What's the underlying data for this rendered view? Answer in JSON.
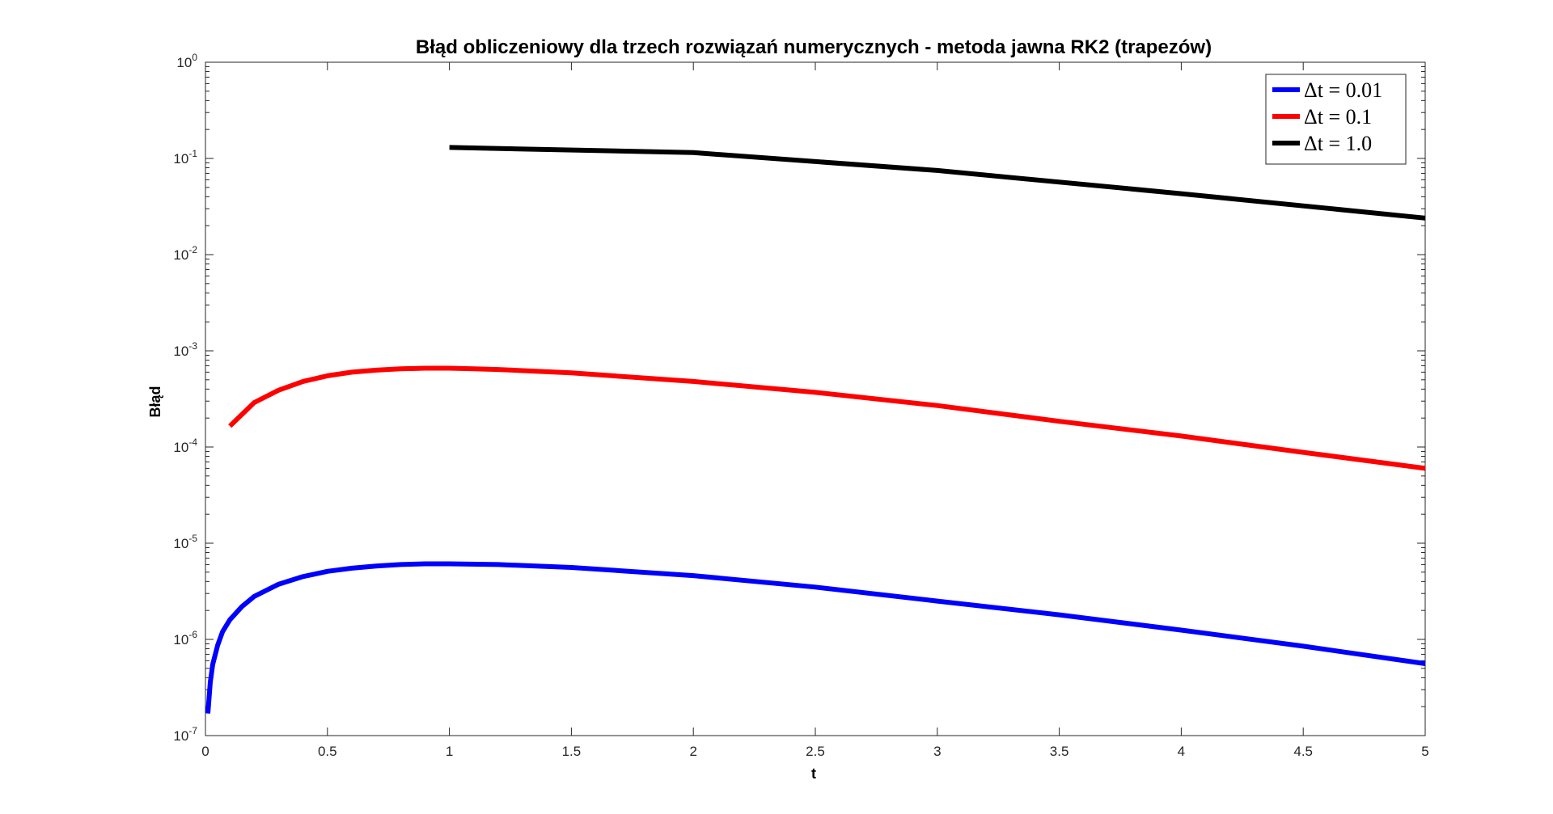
{
  "chart_data": {
    "type": "line",
    "title": "Błąd obliczeniowy dla trzech rozwiązań numerycznych - metoda jawna RK2 (trapezów)",
    "xlabel": "t",
    "ylabel": "Błąd",
    "xlim": [
      0,
      5
    ],
    "ylim": [
      1e-07,
      1
    ],
    "yscale": "log",
    "grid": false,
    "legend_position": "top-right",
    "x_ticks": [
      {
        "value": 0,
        "label": "0"
      },
      {
        "value": 0.5,
        "label": "0.5"
      },
      {
        "value": 1,
        "label": "1"
      },
      {
        "value": 1.5,
        "label": "1.5"
      },
      {
        "value": 2,
        "label": "2"
      },
      {
        "value": 2.5,
        "label": "2.5"
      },
      {
        "value": 3,
        "label": "3"
      },
      {
        "value": 3.5,
        "label": "3.5"
      },
      {
        "value": 4,
        "label": "4"
      },
      {
        "value": 4.5,
        "label": "4.5"
      },
      {
        "value": 5,
        "label": "5"
      }
    ],
    "y_ticks": [
      {
        "value": 1e-07,
        "base": "10",
        "exp": "-7"
      },
      {
        "value": 1e-06,
        "base": "10",
        "exp": "-6"
      },
      {
        "value": 1e-05,
        "base": "10",
        "exp": "-5"
      },
      {
        "value": 0.0001,
        "base": "10",
        "exp": "-4"
      },
      {
        "value": 0.001,
        "base": "10",
        "exp": "-3"
      },
      {
        "value": 0.01,
        "base": "10",
        "exp": "-2"
      },
      {
        "value": 0.1,
        "base": "10",
        "exp": "-1"
      },
      {
        "value": 1,
        "base": "10",
        "exp": "0"
      }
    ],
    "series": [
      {
        "name": "Δt = 0.01",
        "color": "#0000ff",
        "x": [
          0.01,
          0.02,
          0.03,
          0.05,
          0.07,
          0.1,
          0.15,
          0.2,
          0.3,
          0.4,
          0.5,
          0.6,
          0.7,
          0.8,
          0.9,
          1.0,
          1.2,
          1.5,
          2.0,
          2.5,
          3.0,
          3.5,
          4.0,
          4.5,
          5.0
        ],
        "y": [
          1.7e-07,
          3.6e-07,
          5.5e-07,
          8.7e-07,
          1.2e-06,
          1.6e-06,
          2.2e-06,
          2.8e-06,
          3.75e-06,
          4.5e-06,
          5.1e-06,
          5.5e-06,
          5.8e-06,
          6e-06,
          6.1e-06,
          6.1e-06,
          6e-06,
          5.6e-06,
          4.6e-06,
          3.5e-06,
          2.5e-06,
          1.8e-06,
          1.25e-06,
          8.5e-07,
          5.6e-07
        ]
      },
      {
        "name": "Δt = 0.1",
        "color": "#ff0000",
        "x": [
          0.1,
          0.2,
          0.3,
          0.4,
          0.5,
          0.6,
          0.7,
          0.8,
          0.9,
          1.0,
          1.1,
          1.2,
          1.5,
          2.0,
          2.5,
          3.0,
          3.5,
          4.0,
          4.5,
          5.0
        ],
        "y": [
          0.000165,
          0.00029,
          0.00039,
          0.00048,
          0.00055,
          0.0006,
          0.00063,
          0.00065,
          0.00066,
          0.00066,
          0.00065,
          0.00064,
          0.00059,
          0.00048,
          0.00037,
          0.00027,
          0.000185,
          0.00013,
          8.8e-05,
          6e-05
        ]
      },
      {
        "name": "Δt = 1.0",
        "color": "#000000",
        "x": [
          1,
          2,
          3,
          4,
          5
        ],
        "y": [
          0.13,
          0.115,
          0.075,
          0.043,
          0.024
        ]
      }
    ]
  }
}
